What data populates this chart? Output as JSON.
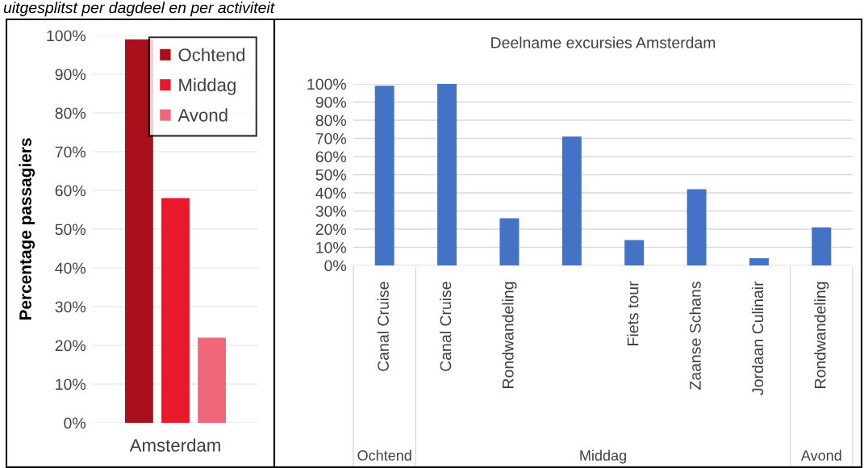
{
  "chart_data": [
    {
      "type": "bar",
      "categories": [
        "Amsterdam"
      ],
      "series": [
        {
          "name": "Ochtend",
          "color": "#a8101c",
          "values": [
            99
          ]
        },
        {
          "name": "Middag",
          "color": "#e8192c",
          "values": [
            58
          ]
        },
        {
          "name": "Avond",
          "color": "#f0677a",
          "values": [
            22
          ]
        }
      ],
      "ylabel": "Percentage passagiers",
      "ylim": [
        0,
        100
      ],
      "yticks": [
        {
          "value": 0,
          "label": "0%"
        },
        {
          "value": 10,
          "label": "10%"
        },
        {
          "value": 20,
          "label": "20%"
        },
        {
          "value": 30,
          "label": "30%"
        },
        {
          "value": 40,
          "label": "40%"
        },
        {
          "value": 50,
          "label": "50%"
        },
        {
          "value": 60,
          "label": "60%"
        },
        {
          "value": 70,
          "label": "70%"
        },
        {
          "value": 80,
          "label": "80%"
        },
        {
          "value": 90,
          "label": "90%"
        },
        {
          "value": 100,
          "label": "100%"
        }
      ],
      "grid": "y",
      "legend": "top right",
      "annotations": [
        "uitgesplitst per dagdeel en per activiteit"
      ]
    },
    {
      "type": "bar",
      "title": "Deelname excursies Amsterdam",
      "categories": [
        "Canal Cruise",
        "Canal Cruise",
        "Rondwandeling",
        null,
        "Fiets tour",
        "Zaanse Schans",
        "Jordaan Culinair",
        "Rondwandeling"
      ],
      "values": [
        99,
        100,
        26,
        71,
        14,
        42,
        4,
        21
      ],
      "color": "#4472c4",
      "ylim": [
        0,
        100
      ],
      "yticks": [
        {
          "value": 0,
          "label": "0%"
        },
        {
          "value": 10,
          "label": "10%"
        },
        {
          "value": 20,
          "label": "20%"
        },
        {
          "value": 30,
          "label": "30%"
        },
        {
          "value": 40,
          "label": "40%"
        },
        {
          "value": 50,
          "label": "50%"
        },
        {
          "value": 60,
          "label": "60%"
        },
        {
          "value": 70,
          "label": "70%"
        },
        {
          "value": 80,
          "label": "80%"
        },
        {
          "value": 90,
          "label": "90%"
        },
        {
          "value": 100,
          "label": "100%"
        }
      ],
      "grid": "y",
      "annotations": [
        "Ochtend",
        "Middag",
        "Avond"
      ]
    }
  ]
}
